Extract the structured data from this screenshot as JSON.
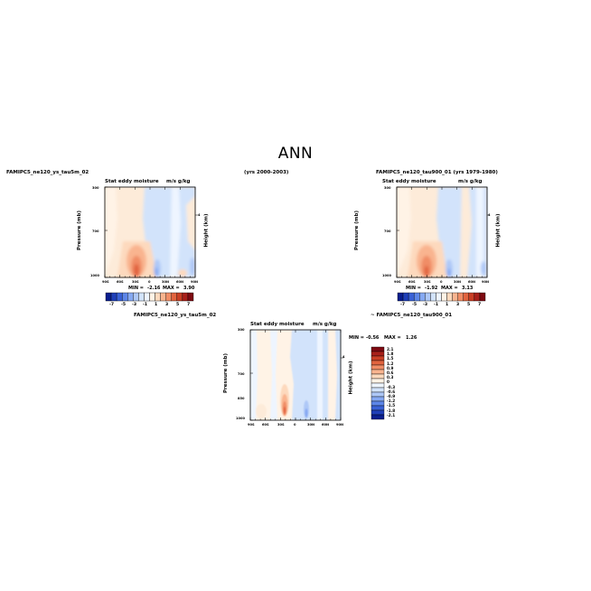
{
  "page_title": "ANN",
  "top_left": {
    "case": "FAMIPC5_ne120_ys_tau5m_02",
    "years": "(yrs 2000-2003)"
  },
  "top_right": {
    "case_years": "FAMIPC5_ne120_tau900_01 (yrs 1979-1980)"
  },
  "bottom": {
    "header_left": "FAMIPC5_ne120_ys_tau5m_02",
    "header_right": "~ FAMIPC5_ne120_tau900_01"
  },
  "panels": [
    {
      "title": "Stat eddy moisture",
      "units": "m/s g/kg",
      "ylabel": "Pressure (mb)",
      "y2label": "Height (km)",
      "y_ticks": [
        "300",
        "700",
        "1000"
      ],
      "y2_ticks": [
        "4"
      ],
      "x_ticks": [
        "90S",
        "60S",
        "30S",
        "0",
        "30N",
        "60N",
        "90N"
      ],
      "min_label": "MIN =",
      "min_value": "-2.16",
      "max_label": "MAX =",
      "max_value": "3.90"
    },
    {
      "title": "Stat eddy moisture",
      "units": "m/s g/kg",
      "ylabel": "Pressure (mb)",
      "y2label": "Height (km)",
      "y_ticks": [
        "300",
        "700",
        "1000"
      ],
      "y2_ticks": [
        "4"
      ],
      "x_ticks": [
        "90S",
        "60S",
        "30S",
        "0",
        "30N",
        "60N",
        "90N"
      ],
      "min_label": "MIN =",
      "min_value": "-1.92",
      "max_label": "MAX =",
      "max_value": "3.13"
    },
    {
      "title": "Stat eddy moisture",
      "units": "m/s g/kg",
      "ylabel": "Pressure (mb)",
      "y2label": "Height (km)",
      "y_ticks": [
        "300",
        "700",
        "850",
        "1000"
      ],
      "y2_ticks": [
        "4"
      ],
      "x_ticks": [
        "90S",
        "60S",
        "30S",
        "0",
        "30N",
        "60N",
        "90N"
      ],
      "min_label": "MIN =",
      "min_value": "-0.56",
      "max_label": "MAX =",
      "max_value": "1.26"
    }
  ],
  "colorbar_main": {
    "labels": [
      "-7",
      "-5",
      "-3",
      "-1",
      "1",
      "3",
      "5",
      "7"
    ],
    "colors": [
      "#0a1f8f",
      "#1f3fb8",
      "#3a62d6",
      "#5d86e8",
      "#86a9f2",
      "#aec8f7",
      "#d2e3fb",
      "#eef5ff",
      "#fff3e6",
      "#fdd9bd",
      "#f9b48f",
      "#f08d66",
      "#e1643f",
      "#c93f25",
      "#a8201a",
      "#7e0a12"
    ]
  },
  "colorbar_diff": {
    "labels": [
      "2.1",
      "1.8",
      "1.5",
      "1.2",
      "0.9",
      "0.6",
      "0.3",
      "0",
      "-0.3",
      "-0.6",
      "-0.9",
      "-1.2",
      "-1.5",
      "-1.8",
      "-2.1"
    ],
    "colors": [
      "#7e0a12",
      "#a8201a",
      "#c93f25",
      "#e1643f",
      "#f08d66",
      "#f9b48f",
      "#fdd9bd",
      "#fff3e6",
      "#eef5ff",
      "#d2e3fb",
      "#aec8f7",
      "#86a9f2",
      "#5d86e8",
      "#3a62d6",
      "#1f3fb8",
      "#0a1f8f"
    ]
  },
  "chart_data": [
    {
      "type": "heatmap",
      "title": "Stat eddy moisture",
      "case": "FAMIPC5_ne120_ys_tau5m_02 (yrs 2000-2003)",
      "units": "m/s g/kg",
      "xlabel": "",
      "ylabel": "Pressure (mb)",
      "y2label": "Height (km)",
      "xlim": [
        -90,
        90
      ],
      "ylim": [
        1000,
        300
      ],
      "min": -2.16,
      "max": 3.9,
      "contour_levels": [
        -7,
        -6,
        -5,
        -4,
        -3,
        -2,
        -1,
        0,
        1,
        2,
        3,
        4,
        5,
        6,
        7
      ]
    },
    {
      "type": "heatmap",
      "title": "Stat eddy moisture",
      "case": "FAMIPC5_ne120_tau900_01 (yrs 1979-1980)",
      "units": "m/s g/kg",
      "xlabel": "",
      "ylabel": "Pressure (mb)",
      "y2label": "Height (km)",
      "xlim": [
        -90,
        90
      ],
      "ylim": [
        1000,
        300
      ],
      "min": -1.92,
      "max": 3.13,
      "contour_levels": [
        -7,
        -6,
        -5,
        -4,
        -3,
        -2,
        -1,
        0,
        1,
        2,
        3,
        4,
        5,
        6,
        7
      ]
    },
    {
      "type": "heatmap",
      "title": "Stat eddy moisture",
      "case": "FAMIPC5_ne120_ys_tau5m_02 - FAMIPC5_ne120_tau900_01",
      "units": "m/s g/kg",
      "xlabel": "",
      "ylabel": "Pressure (mb)",
      "y2label": "Height (km)",
      "xlim": [
        -90,
        90
      ],
      "ylim": [
        1000,
        300
      ],
      "min": -0.56,
      "max": 1.26,
      "contour_levels": [
        -2.1,
        -1.8,
        -1.5,
        -1.2,
        -0.9,
        -0.6,
        -0.3,
        0,
        0.3,
        0.6,
        0.9,
        1.2,
        1.5,
        1.8,
        2.1
      ]
    }
  ]
}
